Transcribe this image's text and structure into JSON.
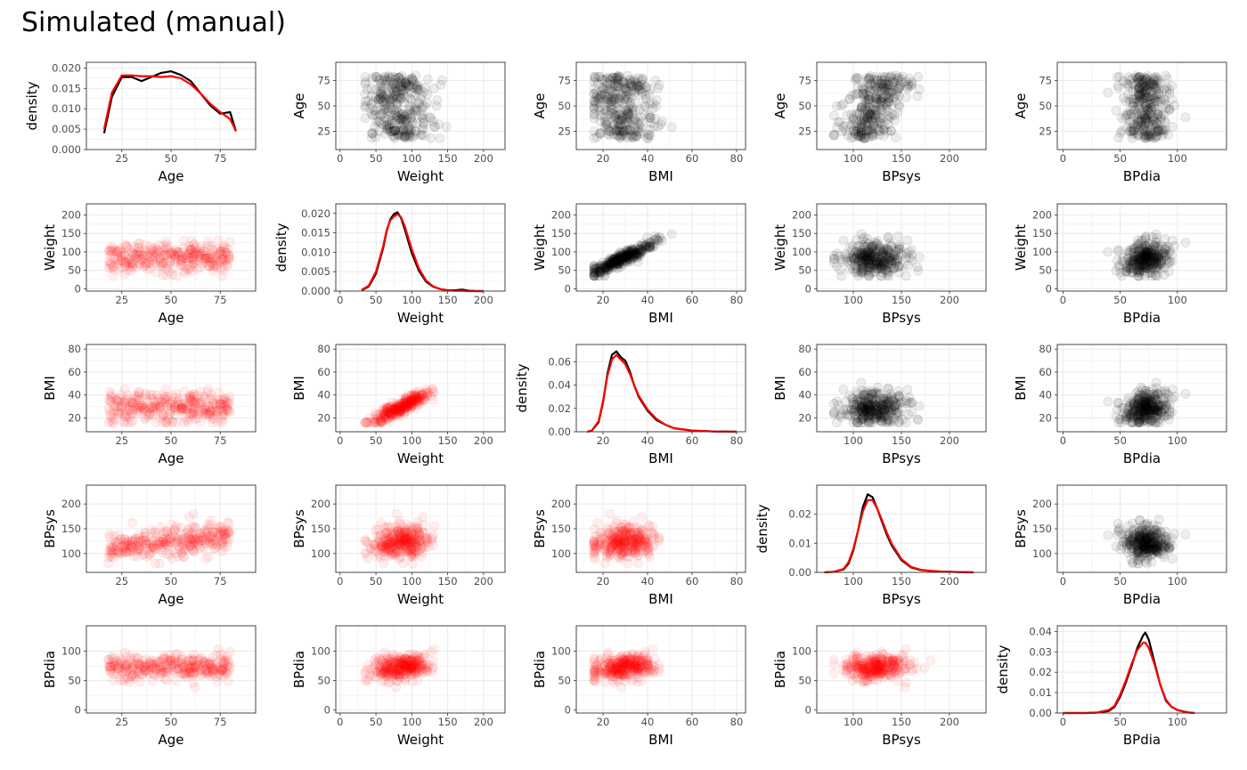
{
  "title": "Simulated (manual)",
  "colors": {
    "observed": "#000000",
    "simulated": "#ff0000",
    "grid": "#ebebeb",
    "border": "#333333"
  },
  "chart_data": {
    "type": "scatter",
    "layout": "pairs-matrix",
    "grid": true,
    "title": "Simulated (manual)",
    "variables": [
      "Age",
      "Weight",
      "BMI",
      "BPsys",
      "BPdia"
    ],
    "ranges": {
      "Age": [
        7,
        93
      ],
      "Weight": [
        -6,
        230
      ],
      "BMI": [
        8,
        84
      ],
      "BPsys": [
        62,
        238
      ],
      "BPdia": [
        -5,
        143
      ]
    },
    "ticks": {
      "Age": [
        25,
        50,
        75
      ],
      "Weight": [
        0,
        50,
        100,
        150,
        200
      ],
      "BMI": [
        20,
        40,
        60,
        80
      ],
      "BPsys": [
        100,
        150,
        200
      ],
      "BPdia": [
        0,
        50,
        100
      ]
    },
    "diag_density_ranges": [
      [
        0,
        0.02
      ],
      [
        0,
        0.021
      ],
      [
        0,
        0.07
      ],
      [
        0,
        0.028
      ],
      [
        0,
        0.04
      ]
    ],
    "diag_density_ticks": [
      [
        "0.000",
        "0.005",
        "0.010",
        "0.015",
        "0.020"
      ],
      [
        "0.000",
        "0.005",
        "0.010",
        "0.015",
        "0.020"
      ],
      [
        "0.00",
        "0.02",
        "0.04",
        "0.06"
      ],
      [
        "0.00",
        "0.01",
        "0.02"
      ],
      [
        "0.00",
        "0.01",
        "0.02",
        "0.03",
        "0.04"
      ]
    ],
    "diag_density_xlim": [
      [
        7,
        93
      ],
      [
        -6,
        230
      ],
      [
        8,
        84
      ],
      [
        62,
        238
      ],
      [
        -5,
        143
      ]
    ],
    "diag_curves": [
      {
        "x": [
          16,
          20,
          25,
          30,
          35,
          40,
          45,
          50,
          55,
          60,
          65,
          70,
          75,
          80,
          83
        ],
        "observed": [
          0.004,
          0.013,
          0.0178,
          0.0178,
          0.0168,
          0.0178,
          0.0188,
          0.0192,
          0.0183,
          0.0168,
          0.0138,
          0.0108,
          0.0088,
          0.0092,
          0.0045
        ],
        "simulated": [
          0.005,
          0.014,
          0.0182,
          0.0182,
          0.018,
          0.018,
          0.0178,
          0.018,
          0.0175,
          0.016,
          0.0138,
          0.0112,
          0.0092,
          0.0075,
          0.0045
        ]
      },
      {
        "x": [
          30,
          40,
          50,
          60,
          65,
          70,
          75,
          80,
          85,
          90,
          100,
          110,
          120,
          130,
          140,
          150,
          160,
          170,
          180,
          190,
          200
        ],
        "observed": [
          0.0002,
          0.0012,
          0.0045,
          0.011,
          0.0155,
          0.0185,
          0.0198,
          0.0203,
          0.0188,
          0.016,
          0.0098,
          0.0052,
          0.0024,
          0.0011,
          0.0005,
          0.0002,
          0.0002,
          0.0004,
          0.0001,
          0.0,
          0.0
        ],
        "simulated": [
          0.0003,
          0.0014,
          0.005,
          0.0115,
          0.0158,
          0.0182,
          0.0192,
          0.0198,
          0.019,
          0.0168,
          0.0108,
          0.0058,
          0.0027,
          0.0012,
          0.0005,
          0.0002,
          0.0001,
          0.0001,
          0.0,
          0.0,
          0.0
        ]
      },
      {
        "x": [
          13,
          15,
          18,
          20,
          22,
          24,
          26,
          28,
          30,
          32,
          34,
          36,
          38,
          40,
          44,
          48,
          52,
          56,
          60,
          70,
          80
        ],
        "observed": [
          0.0,
          0.001,
          0.008,
          0.025,
          0.05,
          0.066,
          0.069,
          0.064,
          0.061,
          0.052,
          0.04,
          0.03,
          0.024,
          0.018,
          0.01,
          0.006,
          0.003,
          0.002,
          0.001,
          0.0002,
          0.0
        ],
        "simulated": [
          0.0,
          0.001,
          0.009,
          0.026,
          0.048,
          0.062,
          0.066,
          0.062,
          0.058,
          0.05,
          0.04,
          0.031,
          0.025,
          0.019,
          0.011,
          0.006,
          0.003,
          0.002,
          0.001,
          0.0002,
          0.0
        ]
      },
      {
        "x": [
          70,
          80,
          90,
          95,
          100,
          105,
          110,
          115,
          120,
          125,
          130,
          135,
          140,
          150,
          160,
          170,
          180,
          190,
          200,
          210,
          225
        ],
        "observed": [
          0.0,
          0.0002,
          0.001,
          0.003,
          0.0075,
          0.0145,
          0.0225,
          0.0268,
          0.0258,
          0.0218,
          0.0172,
          0.0128,
          0.0092,
          0.0042,
          0.0017,
          0.0008,
          0.0005,
          0.0003,
          0.0002,
          0.0001,
          0.0
        ],
        "simulated": [
          0.0,
          0.0002,
          0.0012,
          0.0035,
          0.008,
          0.0145,
          0.021,
          0.0248,
          0.0248,
          0.0218,
          0.0178,
          0.0135,
          0.0098,
          0.0046,
          0.0019,
          0.0009,
          0.0005,
          0.0003,
          0.0002,
          0.0001,
          0.0
        ]
      },
      {
        "x": [
          0,
          10,
          20,
          30,
          40,
          45,
          50,
          55,
          60,
          65,
          70,
          72,
          75,
          80,
          85,
          90,
          95,
          100,
          105,
          110,
          115
        ],
        "observed": [
          0.0,
          0.0,
          0.0,
          0.0002,
          0.001,
          0.003,
          0.008,
          0.015,
          0.023,
          0.032,
          0.038,
          0.0395,
          0.036,
          0.025,
          0.014,
          0.006,
          0.003,
          0.0015,
          0.0008,
          0.0002,
          0.0
        ],
        "simulated": [
          0.0,
          0.0,
          0.0,
          0.0003,
          0.0015,
          0.0035,
          0.009,
          0.016,
          0.024,
          0.031,
          0.0345,
          0.0345,
          0.032,
          0.024,
          0.014,
          0.0065,
          0.003,
          0.0015,
          0.0008,
          0.0003,
          0.0
        ]
      }
    ],
    "upper_triangle_series": "observed",
    "lower_triangle_series": "simulated",
    "point_samples": {
      "n": 320,
      "means": {
        "Age": 48,
        "Weight": 82,
        "BMI": 28.5,
        "BPsys": 121,
        "BPdia": 73
      },
      "sds": {
        "Age": 18,
        "Weight": 21,
        "BMI": 6.5,
        "BPsys": 17,
        "BPdia": 11
      }
    }
  }
}
